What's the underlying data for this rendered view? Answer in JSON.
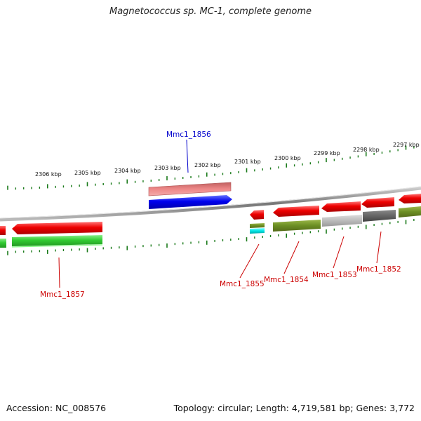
{
  "title": "Magnetococcus sp. MC-1, complete genome",
  "footer": {
    "accession": "Accession: NC_008576",
    "summary": "Topology: circular; Length: 4,719,581 bp; Genes: 3,772"
  },
  "ruler_labels": [
    "2306 kbp",
    "2305 kbp",
    "2304 kbp",
    "2303 kbp",
    "2302 kbp",
    "2301 kbp",
    "2300 kbp",
    "2299 kbp",
    "2298 kbp",
    "2297 kbp"
  ],
  "genes": [
    {
      "id": "Mmc1_1856",
      "label": "Mmc1_1856",
      "color": "#0000cc"
    },
    {
      "id": "Mmc1_1857",
      "label": "Mmc1_1857",
      "color": "#cc0000"
    },
    {
      "id": "Mmc1_1855",
      "label": "Mmc1_1855",
      "color": "#cc0000"
    },
    {
      "id": "Mmc1_1854",
      "label": "Mmc1_1854",
      "color": "#cc0000"
    },
    {
      "id": "Mmc1_1853",
      "label": "Mmc1_1853",
      "color": "#cc0000"
    },
    {
      "id": "Mmc1_1852",
      "label": "Mmc1_1852",
      "color": "#cc0000"
    }
  ],
  "colors": {
    "forward_cds": "#ee0000",
    "selected_cds": "#0000ee",
    "ruler_ticks": "#1a7a1a",
    "backbone": "#888888",
    "gc_low": "#6b8e23",
    "gc_mid": "#bbbbbb",
    "gc_dark": "#666666",
    "cds_green": "#33cc33",
    "pink_band": "#ee8888",
    "cyan_band": "#00e5e5"
  }
}
